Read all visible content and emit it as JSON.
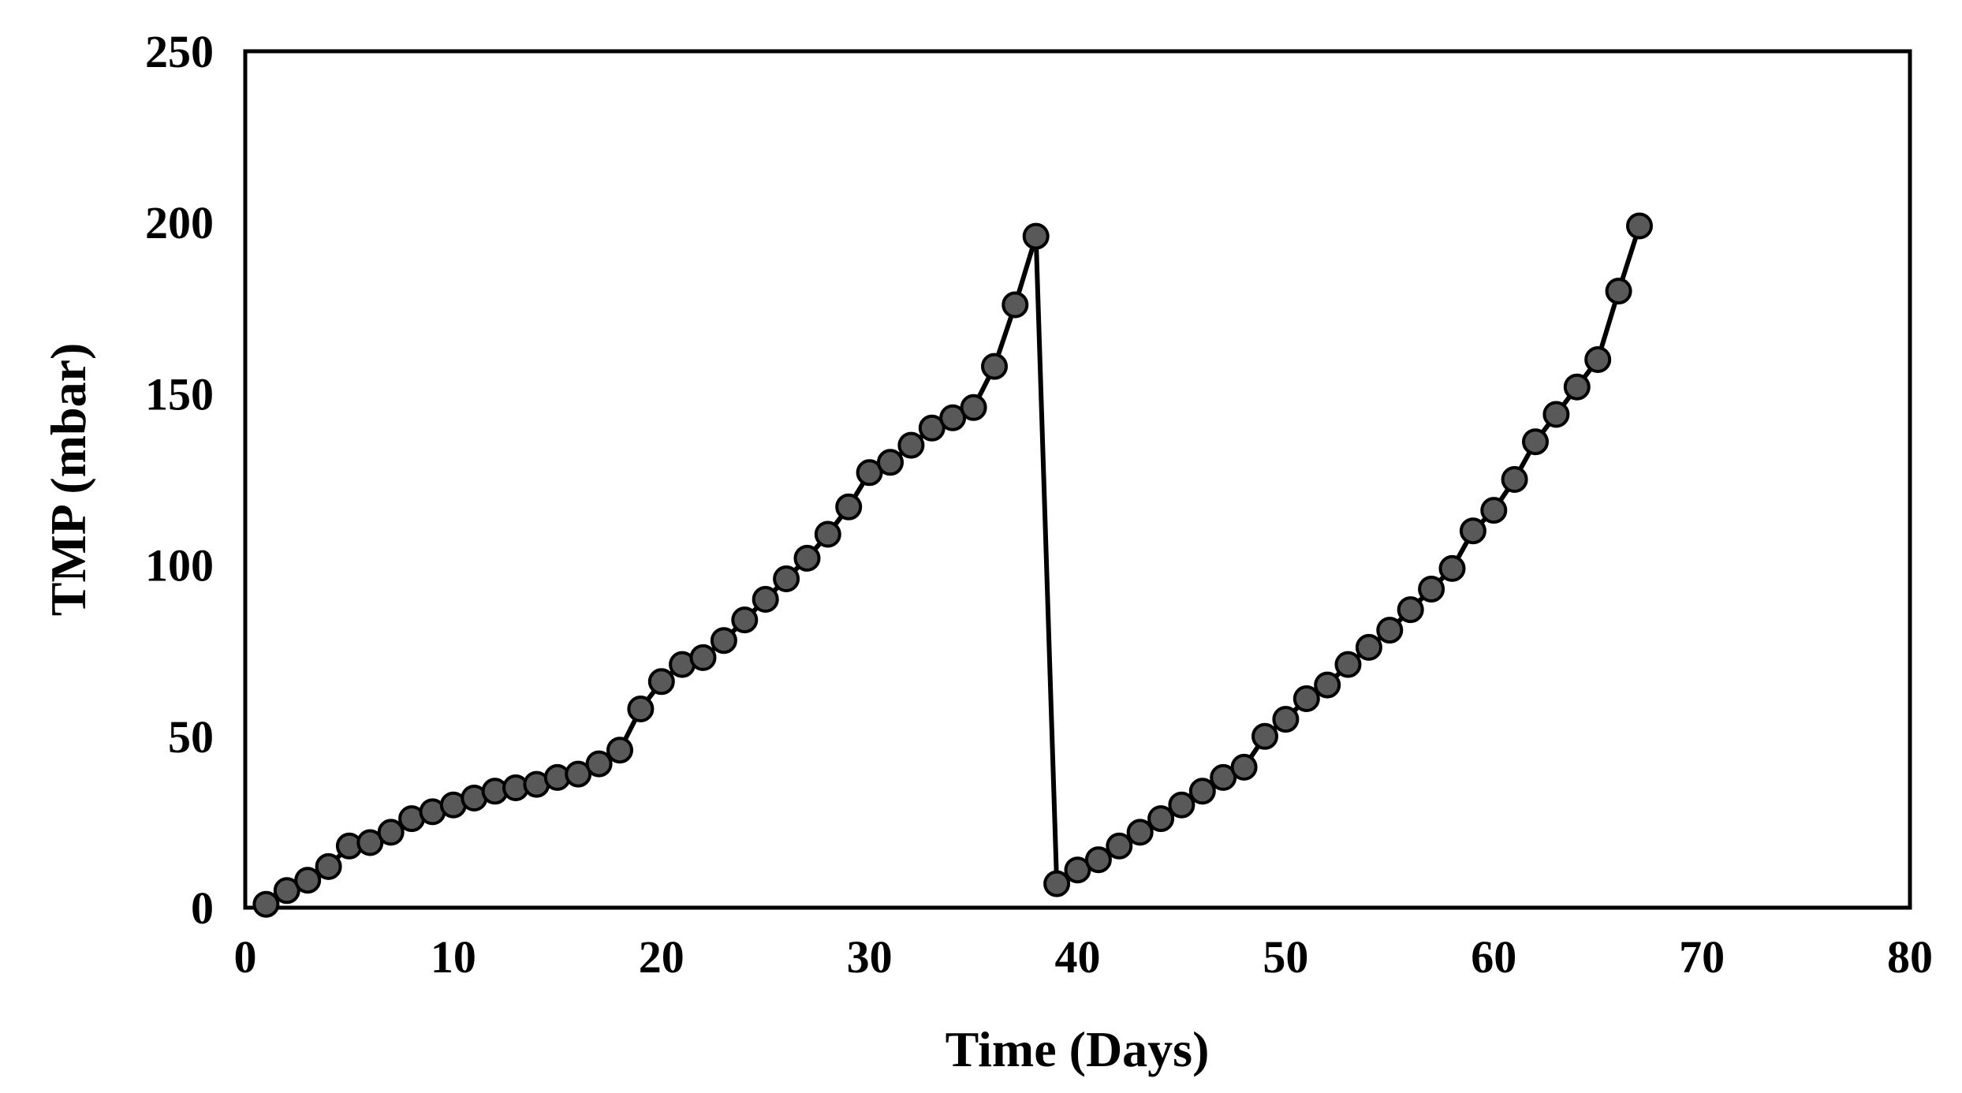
{
  "chart_data": {
    "type": "line",
    "title": "",
    "xlabel": "Time (Days)",
    "ylabel": "TMP (mbar)",
    "xlim": [
      0,
      80
    ],
    "ylim": [
      0,
      250
    ],
    "xticks": [
      "0",
      "10",
      "20",
      "30",
      "40",
      "50",
      "60",
      "70",
      "80"
    ],
    "yticks": [
      "0",
      "50",
      "100",
      "150",
      "200",
      "250"
    ],
    "grid": false,
    "legend": "none",
    "colors": {
      "line": "#000000",
      "marker_fill": "#595959",
      "marker_edge": "#000000",
      "frame": "#000000"
    },
    "series": [
      {
        "name": "TMP",
        "x": [
          1,
          2,
          3,
          4,
          5,
          6,
          7,
          8,
          9,
          10,
          11,
          12,
          13,
          14,
          15,
          16,
          17,
          18,
          19,
          20,
          21,
          22,
          23,
          24,
          25,
          26,
          27,
          28,
          29,
          30,
          31,
          32,
          33,
          34,
          35,
          36,
          37,
          38,
          39,
          40,
          41,
          42,
          43,
          44,
          45,
          46,
          47,
          48,
          49,
          50,
          51,
          52,
          53,
          54,
          55,
          56,
          57,
          58,
          59,
          60,
          61,
          62,
          63,
          64,
          65,
          66,
          67
        ],
        "y": [
          1,
          5,
          8,
          12,
          18,
          19,
          22,
          26,
          28,
          30,
          32,
          34,
          35,
          36,
          38,
          39,
          42,
          46,
          58,
          66,
          71,
          73,
          78,
          84,
          90,
          96,
          102,
          109,
          117,
          127,
          130,
          135,
          140,
          143,
          146,
          158,
          176,
          196,
          7,
          11,
          14,
          18,
          22,
          26,
          30,
          34,
          38,
          41,
          50,
          55,
          61,
          65,
          71,
          76,
          81,
          87,
          93,
          99,
          110,
          116,
          125,
          136,
          144,
          152,
          160,
          180,
          199
        ]
      }
    ]
  }
}
